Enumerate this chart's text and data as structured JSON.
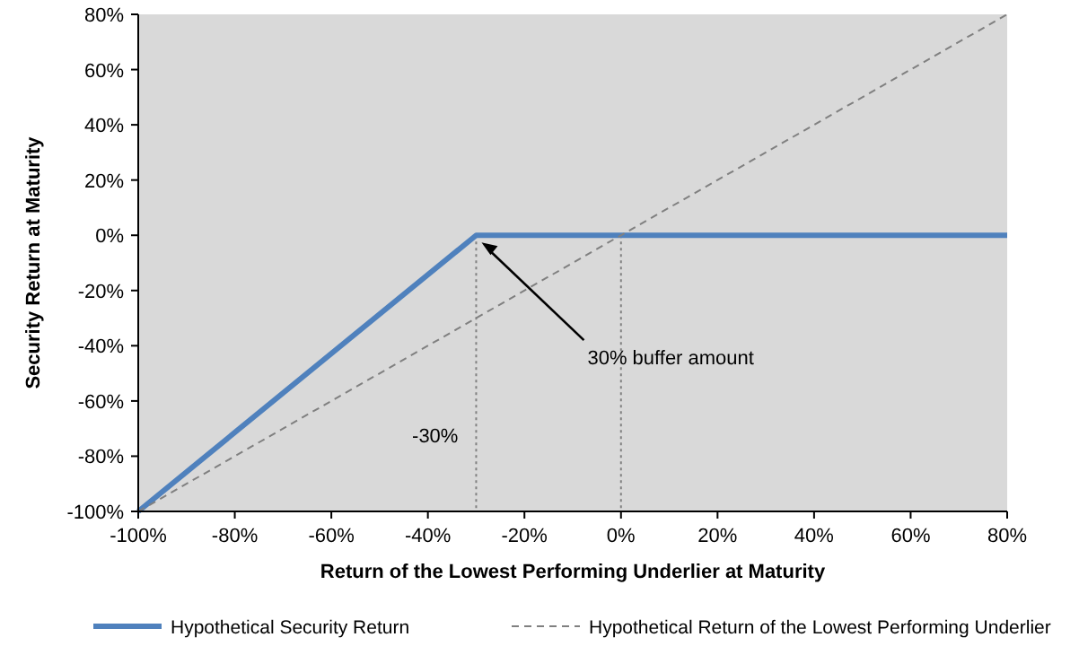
{
  "chart_data": {
    "type": "line",
    "xlabel": "Return of the Lowest Performing Underlier at Maturity",
    "ylabel": "Security Return at Maturity",
    "xlim": [
      -100,
      80
    ],
    "ylim": [
      -100,
      80
    ],
    "xticks": [
      {
        "value": -100,
        "label": "-100%"
      },
      {
        "value": -80,
        "label": "-80%"
      },
      {
        "value": -60,
        "label": "-60%"
      },
      {
        "value": -40,
        "label": "-40%"
      },
      {
        "value": -20,
        "label": "-20%"
      },
      {
        "value": 0,
        "label": "0%"
      },
      {
        "value": 20,
        "label": "20%"
      },
      {
        "value": 40,
        "label": "40%"
      },
      {
        "value": 60,
        "label": "60%"
      },
      {
        "value": 80,
        "label": "80%"
      }
    ],
    "yticks": [
      {
        "value": -100,
        "label": "-100%"
      },
      {
        "value": -80,
        "label": "-80%"
      },
      {
        "value": -60,
        "label": "-60%"
      },
      {
        "value": -40,
        "label": "-40%"
      },
      {
        "value": -20,
        "label": "-20%"
      },
      {
        "value": 0,
        "label": "0%"
      },
      {
        "value": 20,
        "label": "20%"
      },
      {
        "value": 40,
        "label": "40%"
      },
      {
        "value": 60,
        "label": "60%"
      },
      {
        "value": 80,
        "label": "80%"
      }
    ],
    "series": [
      {
        "name": "Hypothetical Security Return",
        "color": "#4f81bd",
        "x": [
          -100,
          -30,
          80
        ],
        "values": [
          -100,
          0,
          0
        ],
        "line_style": "solid"
      },
      {
        "name": "Hypothetical Return of the Lowest Performing Underlier",
        "color": "#808080",
        "x": [
          -100,
          80
        ],
        "values": [
          -100,
          80
        ],
        "line_style": "dashed"
      }
    ],
    "ref_lines": [
      {
        "axis": "x",
        "value": -30,
        "label": "-30%",
        "color": "#808080",
        "line_style": "dotted"
      },
      {
        "axis": "x",
        "value": 0,
        "color": "#808080",
        "line_style": "dotted"
      }
    ],
    "annotations": [
      "30% buffer amount"
    ],
    "legend": "bottom",
    "grid": false
  }
}
